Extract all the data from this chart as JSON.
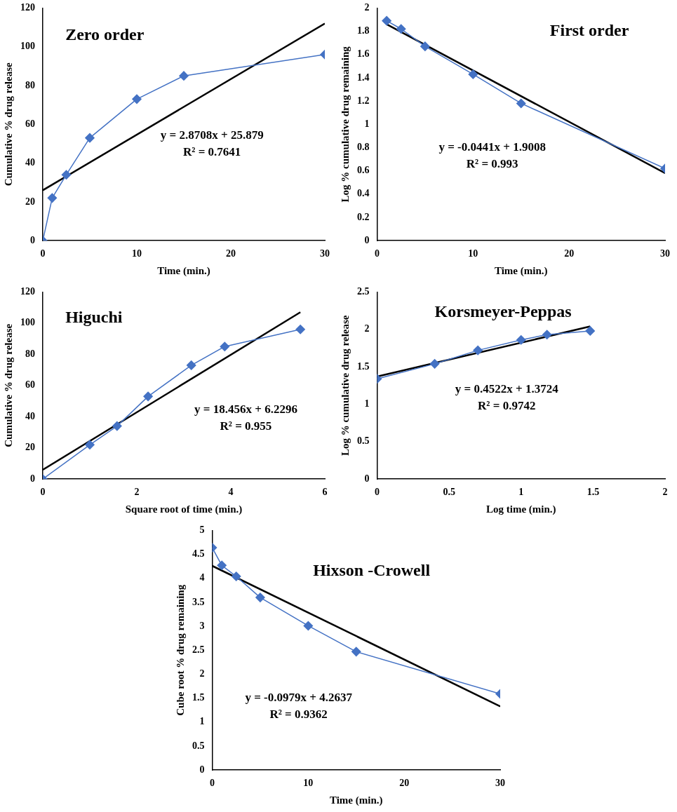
{
  "chart_data": [
    {
      "type": "line",
      "title": "Zero order",
      "xlabel": "Time (min.)",
      "ylabel": "Cumulative % drug release",
      "xlim": [
        0,
        30
      ],
      "xticks": [
        0,
        10,
        20,
        30
      ],
      "ylim": [
        0,
        120
      ],
      "yticks": [
        0,
        20,
        40,
        60,
        80,
        100,
        120
      ],
      "annotations": [
        "y = 2.8708x + 25.879",
        "R² = 0.7641"
      ],
      "marker": "diamond",
      "series": [
        {
          "color": "#4472c4",
          "x": [
            0,
            1,
            2.5,
            5,
            10,
            15,
            30
          ],
          "values": [
            0,
            22,
            34,
            53,
            73,
            85,
            96
          ]
        },
        {
          "type": "line",
          "color": "#000000",
          "marker": "none",
          "x": [
            0,
            30
          ],
          "values": [
            26,
            112
          ]
        }
      ]
    },
    {
      "type": "line",
      "title": "First order",
      "xlabel": "Time (min.)",
      "ylabel": "Log % cumulative drug remaining",
      "xlim": [
        0,
        30
      ],
      "xticks": [
        0,
        10,
        20,
        30
      ],
      "ylim": [
        0,
        2
      ],
      "yticks": [
        0,
        0.2,
        0.4,
        0.6,
        0.8,
        1,
        1.2,
        1.4,
        1.6,
        1.8,
        2
      ],
      "annotations": [
        "y = -0.0441x + 1.9008",
        "R² = 0.993"
      ],
      "marker": "diamond",
      "series": [
        {
          "color": "#4472c4",
          "x": [
            1,
            2.5,
            5,
            10,
            15,
            30
          ],
          "values": [
            1.89,
            1.82,
            1.67,
            1.43,
            1.18,
            0.62
          ]
        },
        {
          "type": "line",
          "color": "#000000",
          "marker": "none",
          "x": [
            1,
            30
          ],
          "values": [
            1.86,
            0.58
          ]
        }
      ]
    },
    {
      "type": "line",
      "title": "Higuchi",
      "xlabel": "Square root of time (min.)",
      "ylabel": "Cumulative % drug release",
      "xlim": [
        0,
        6
      ],
      "xticks": [
        0,
        2,
        4,
        6
      ],
      "ylim": [
        0,
        120
      ],
      "yticks": [
        0,
        20,
        40,
        60,
        80,
        100,
        120
      ],
      "annotations": [
        "y = 18.456x + 6.2296",
        "R² = 0.955"
      ],
      "marker": "diamond",
      "series": [
        {
          "color": "#4472c4",
          "x": [
            0,
            1,
            1.58,
            2.24,
            3.16,
            3.87,
            5.48
          ],
          "values": [
            0,
            22,
            34,
            53,
            73,
            85,
            96
          ]
        },
        {
          "type": "line",
          "color": "#000000",
          "marker": "none",
          "x": [
            0,
            5.48
          ],
          "values": [
            6,
            107
          ]
        }
      ]
    },
    {
      "type": "line",
      "title": "Korsmeyer-Peppas",
      "xlabel": "Log time (min.)",
      "ylabel": "Log % cumulative drug release",
      "xlim": [
        0,
        2
      ],
      "xticks": [
        0,
        0.5,
        1,
        1.5,
        2
      ],
      "ylim": [
        0,
        2.5
      ],
      "yticks": [
        0,
        0.5,
        1,
        1.5,
        2,
        2.5
      ],
      "annotations": [
        "y = 0.4522x + 1.3724",
        "R² = 0.9742"
      ],
      "marker": "diamond",
      "series": [
        {
          "color": "#4472c4",
          "x": [
            0,
            0.4,
            0.7,
            1,
            1.18,
            1.48
          ],
          "values": [
            1.34,
            1.54,
            1.72,
            1.86,
            1.93,
            1.98
          ]
        },
        {
          "type": "line",
          "color": "#000000",
          "marker": "none",
          "x": [
            0,
            1.48
          ],
          "values": [
            1.37,
            2.04
          ]
        }
      ]
    },
    {
      "type": "line",
      "title": "Hixson -Crowell",
      "xlabel": "Time (min.)",
      "ylabel": "Cube root % drug remaining",
      "xlim": [
        0,
        30
      ],
      "xticks": [
        0,
        10,
        20,
        30
      ],
      "ylim": [
        0,
        5
      ],
      "yticks": [
        0,
        0.5,
        1,
        1.5,
        2,
        2.5,
        3,
        3.5,
        4,
        4.5,
        5
      ],
      "annotations": [
        "y = -0.0979x + 4.2637",
        "R² = 0.9362"
      ],
      "marker": "diamond",
      "series": [
        {
          "color": "#4472c4",
          "x": [
            0,
            1,
            2.5,
            5,
            10,
            15,
            30
          ],
          "values": [
            4.64,
            4.27,
            4.04,
            3.6,
            3.01,
            2.47,
            1.59
          ]
        },
        {
          "type": "line",
          "color": "#000000",
          "marker": "none",
          "x": [
            0,
            30
          ],
          "values": [
            4.26,
            1.33
          ]
        }
      ]
    }
  ]
}
